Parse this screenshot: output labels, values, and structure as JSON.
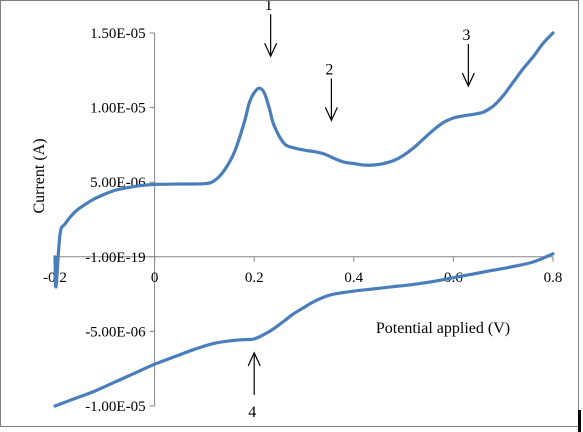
{
  "chart_data": {
    "type": "line",
    "title": "",
    "xlabel": "Potential applied (V)",
    "ylabel": "Current (A)",
    "xlim": [
      -0.2,
      0.8
    ],
    "ylim": [
      -1e-05,
      1.5e-05
    ],
    "x_ticks": [
      -0.2,
      0,
      0.2,
      0.4,
      0.6,
      0.8
    ],
    "x_tick_labels": [
      "-0.2",
      "0",
      "0.2",
      "0.4",
      "0.6",
      "0.8"
    ],
    "y_ticks": [
      1.5e-05,
      1e-05,
      5e-06,
      0,
      -5e-06,
      -1e-05
    ],
    "y_tick_labels": [
      "1.50E-05",
      "1.00E-05",
      "5.00E-06",
      "-1.00E-19",
      "-5.00E-06",
      "-1.00E-05"
    ],
    "grid": false,
    "line_color": "#4a7ebb",
    "series": [
      {
        "values": [
          [
            -0.2,
            0.0
          ],
          [
            -0.198,
            -2e-06
          ],
          [
            -0.19,
            1.5e-06
          ],
          [
            -0.18,
            2.2e-06
          ],
          [
            -0.16,
            3e-06
          ],
          [
            -0.14,
            3.5e-06
          ],
          [
            -0.12,
            3.9e-06
          ],
          [
            -0.1,
            4.2e-06
          ],
          [
            -0.08,
            4.45e-06
          ],
          [
            -0.06,
            4.6e-06
          ],
          [
            -0.04,
            4.72e-06
          ],
          [
            -0.02,
            4.8e-06
          ],
          [
            0.0,
            4.85e-06
          ],
          [
            0.05,
            4.88e-06
          ],
          [
            0.1,
            4.9e-06
          ],
          [
            0.12,
            5.1e-06
          ],
          [
            0.14,
            5.8e-06
          ],
          [
            0.16,
            7e-06
          ],
          [
            0.18,
            9e-06
          ],
          [
            0.19,
            1.03e-05
          ],
          [
            0.2,
            1.1e-05
          ],
          [
            0.21,
            1.13e-05
          ],
          [
            0.22,
            1.1e-05
          ],
          [
            0.23,
            1e-05
          ],
          [
            0.24,
            8.8e-06
          ],
          [
            0.26,
            7.6e-06
          ],
          [
            0.28,
            7.3e-06
          ],
          [
            0.3,
            7.15e-06
          ],
          [
            0.32,
            7.05e-06
          ],
          [
            0.34,
            6.9e-06
          ],
          [
            0.36,
            6.6e-06
          ],
          [
            0.38,
            6.35e-06
          ],
          [
            0.4,
            6.25e-06
          ],
          [
            0.42,
            6.15e-06
          ],
          [
            0.44,
            6.15e-06
          ],
          [
            0.46,
            6.25e-06
          ],
          [
            0.48,
            6.45e-06
          ],
          [
            0.5,
            6.8e-06
          ],
          [
            0.52,
            7.3e-06
          ],
          [
            0.54,
            7.9e-06
          ],
          [
            0.56,
            8.5e-06
          ],
          [
            0.58,
            9e-06
          ],
          [
            0.6,
            9.3e-06
          ],
          [
            0.62,
            9.45e-06
          ],
          [
            0.64,
            9.55e-06
          ],
          [
            0.66,
            9.7e-06
          ],
          [
            0.68,
            1.01e-05
          ],
          [
            0.7,
            1.08e-05
          ],
          [
            0.72,
            1.17e-05
          ],
          [
            0.74,
            1.26e-05
          ],
          [
            0.76,
            1.34e-05
          ],
          [
            0.78,
            1.43e-05
          ],
          [
            0.8,
            1.5e-05
          ]
        ]
      },
      {
        "values": [
          [
            -0.2,
            -1e-05
          ],
          [
            -0.16,
            -9.5e-06
          ],
          [
            -0.12,
            -9e-06
          ],
          [
            -0.08,
            -8.4e-06
          ],
          [
            -0.04,
            -7.8e-06
          ],
          [
            0.0,
            -7.2e-06
          ],
          [
            0.04,
            -6.7e-06
          ],
          [
            0.08,
            -6.2e-06
          ],
          [
            0.12,
            -5.8e-06
          ],
          [
            0.16,
            -5.6e-06
          ],
          [
            0.18,
            -5.55e-06
          ],
          [
            0.2,
            -5.5e-06
          ],
          [
            0.22,
            -5.2e-06
          ],
          [
            0.24,
            -4.8e-06
          ],
          [
            0.26,
            -4.3e-06
          ],
          [
            0.28,
            -3.8e-06
          ],
          [
            0.3,
            -3.4e-06
          ],
          [
            0.32,
            -3e-06
          ],
          [
            0.34,
            -2.7e-06
          ],
          [
            0.36,
            -2.5e-06
          ],
          [
            0.4,
            -2.3e-06
          ],
          [
            0.44,
            -2.15e-06
          ],
          [
            0.48,
            -2e-06
          ],
          [
            0.52,
            -1.85e-06
          ],
          [
            0.56,
            -1.65e-06
          ],
          [
            0.6,
            -1.4e-06
          ],
          [
            0.64,
            -1.15e-06
          ],
          [
            0.68,
            -9e-07
          ],
          [
            0.72,
            -6.5e-07
          ],
          [
            0.76,
            -3.5e-07
          ],
          [
            0.8,
            2e-07
          ]
        ]
      }
    ],
    "annotations": [
      {
        "text": "1",
        "x": 0.233,
        "y": 1.13e-05,
        "direction": "down"
      },
      {
        "text": "2",
        "x": 0.355,
        "y": 7e-06,
        "direction": "down"
      },
      {
        "text": "3",
        "x": 0.63,
        "y": 9.3e-06,
        "direction": "down"
      },
      {
        "text": "4",
        "x": 0.2,
        "y": -5.5e-06,
        "direction": "up"
      }
    ]
  }
}
